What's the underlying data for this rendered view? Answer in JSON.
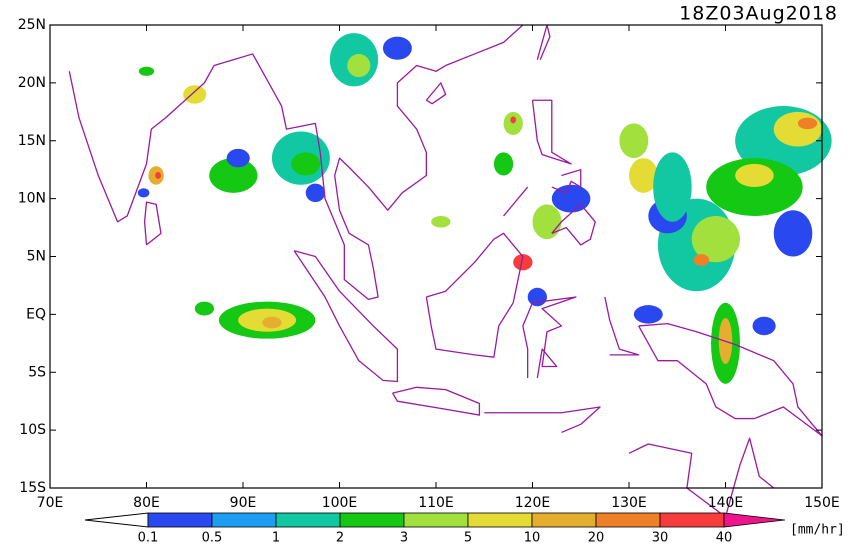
{
  "header": {
    "timestamp": "18Z03Aug2018"
  },
  "map": {
    "lat_labels": [
      "25N",
      "20N",
      "15N",
      "10N",
      "5N",
      "EQ",
      "5S",
      "10S",
      "15S"
    ],
    "lon_labels": [
      "70E",
      "80E",
      "90E",
      "100E",
      "110E",
      "120E",
      "130E",
      "140E",
      "150E"
    ]
  },
  "colorbar": {
    "labels": [
      "0.1",
      "0.5",
      "1",
      "2",
      "3",
      "5",
      "10",
      "20",
      "30",
      "40"
    ],
    "colors": [
      "#2a48f0",
      "#1e9ef2",
      "#12c8a2",
      "#14c814",
      "#a2e03e",
      "#e4dc34",
      "#e6ae2e",
      "#f08028",
      "#f83c3c",
      "#f0148c"
    ],
    "unit": "[mm/hr]"
  }
}
